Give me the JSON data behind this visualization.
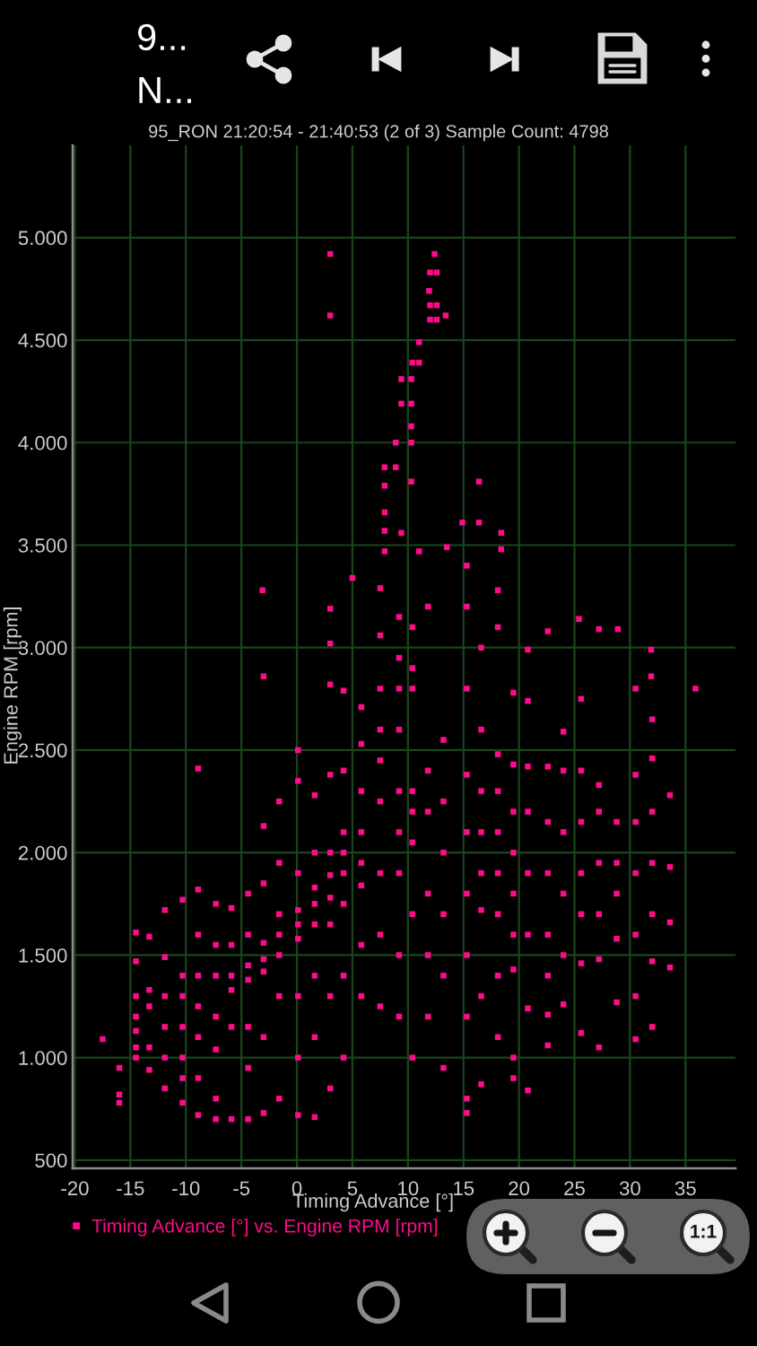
{
  "chart_data": {
    "type": "scatter",
    "title": "95_RON 21:20:54 - 21:40:53 (2 of 3) Sample Count: 4798",
    "xlabel": "Timing Advance [°]",
    "ylabel": "Engine RPM [rpm]",
    "annotations": [
      "9...",
      "N...",
      "1:1"
    ],
    "series": [
      {
        "name": "Timing Advance [°] vs. Engine RPM [rpm]",
        "color": "#ff0a8c",
        "x": [
          -17.5,
          -16,
          -16,
          -16,
          -14.5,
          -14.5,
          -14.5,
          -14.5,
          -14.5,
          -14.5,
          -14.5,
          -13.3,
          -13.3,
          -13.3,
          -13.3,
          -13.3,
          -11.9,
          -11.9,
          -11.9,
          -11.9,
          -11.9,
          -11.9,
          -10.3,
          -10.3,
          -10.3,
          -10.3,
          -10.3,
          -10.3,
          -10.3,
          -8.9,
          -8.9,
          -8.9,
          -8.9,
          -8.9,
          -8.9,
          -8.9,
          -8.9,
          -7.3,
          -7.3,
          -7.3,
          -7.3,
          -7.3,
          -7.3,
          -7.3,
          -5.9,
          -5.9,
          -5.9,
          -5.9,
          -5.9,
          -5.9,
          -4.4,
          -4.4,
          -4.4,
          -4.4,
          -4.4,
          -4.4,
          -4.4,
          -3,
          -3,
          -3,
          -3,
          -3,
          -3,
          -3,
          -3,
          -3.1,
          -1.6,
          -1.6,
          -1.6,
          -1.6,
          -1.6,
          -1.6,
          -1.6,
          0.1,
          0.1,
          0.1,
          0.1,
          0.1,
          0.1,
          0.1,
          0.1,
          0.1,
          1.6,
          1.6,
          1.6,
          1.6,
          1.6,
          1.6,
          1.6,
          1.6,
          3,
          3,
          3,
          3,
          3,
          3,
          3,
          3,
          3,
          3,
          3,
          3,
          4.2,
          4.2,
          4.2,
          4.2,
          4.2,
          4.2,
          4.2,
          4.2,
          5,
          5.8,
          5.8,
          5.8,
          5.8,
          5.8,
          5.8,
          5.8,
          5.8,
          7.5,
          7.5,
          7.5,
          7.5,
          7.5,
          7.5,
          7.5,
          7.5,
          7.5,
          7.9,
          7.9,
          7.9,
          7.9,
          7.9,
          8.9,
          8.9,
          9.2,
          9.2,
          9.2,
          9.2,
          9.2,
          9.2,
          9.2,
          9.2,
          9.2,
          9.4,
          9.4,
          9.4,
          10.3,
          10.3,
          10.3,
          10.3,
          10.3,
          10.4,
          10.4,
          10.4,
          10.4,
          10.4,
          10.4,
          10.4,
          10.4,
          10.4,
          11,
          11,
          11,
          11.8,
          11.8,
          11.8,
          11.8,
          11.8,
          11.8,
          12,
          12,
          12,
          11.9,
          12.4,
          12.6,
          12.6,
          12.6,
          13.2,
          13.2,
          13.2,
          13.2,
          13.2,
          13.2,
          13.4,
          13.5,
          14.9,
          15.3,
          15.3,
          15.3,
          15.3,
          15.3,
          15.3,
          15.3,
          15.3,
          15.3,
          15.3,
          16.4,
          16.4,
          16.6,
          16.6,
          16.6,
          16.6,
          16.6,
          16.6,
          16.6,
          16.6,
          18.1,
          18.1,
          18.1,
          18.1,
          18.1,
          18.1,
          18.1,
          18.1,
          18.1,
          18.4,
          18.4,
          19.5,
          19.5,
          19.5,
          19.5,
          19.5,
          19.5,
          19.5,
          19.5,
          19.5,
          20.8,
          20.8,
          20.8,
          20.8,
          20.8,
          20.8,
          20.8,
          20.8,
          22.6,
          22.6,
          22.6,
          22.6,
          22.6,
          22.6,
          22.6,
          22.6,
          24,
          24,
          24,
          24,
          24,
          24,
          25.4,
          25.6,
          25.6,
          25.6,
          25.6,
          25.6,
          25.6,
          25.6,
          27.2,
          27.2,
          27.2,
          27.2,
          27.2,
          27.2,
          27.2,
          28.8,
          28.8,
          28.8,
          28.8,
          28.8,
          28.9,
          30.5,
          30.5,
          30.5,
          30.5,
          30.5,
          30.5,
          30.5,
          31.9,
          31.9,
          32,
          32,
          32,
          32,
          32,
          32,
          32,
          33.6,
          33.6,
          33.6,
          33.6,
          35.9
        ],
        "values": [
          1090,
          950,
          820,
          780,
          1610,
          1470,
          1300,
          1200,
          1130,
          1050,
          1000,
          1590,
          1330,
          1250,
          1050,
          940,
          1720,
          1490,
          1300,
          1150,
          1000,
          850,
          1770,
          1400,
          1300,
          1150,
          1000,
          900,
          780,
          2410,
          1820,
          1600,
          1400,
          1250,
          1100,
          900,
          720,
          1750,
          1550,
          1400,
          1200,
          1040,
          800,
          700,
          1730,
          1550,
          1400,
          1330,
          1150,
          700,
          1800,
          1600,
          1450,
          1380,
          1150,
          950,
          700,
          2860,
          2130,
          1850,
          1560,
          1480,
          1420,
          1100,
          730,
          3280,
          2250,
          1950,
          1700,
          1600,
          1500,
          1300,
          800,
          2500,
          2350,
          1900,
          1720,
          1650,
          1580,
          1300,
          1000,
          720,
          2280,
          2000,
          1830,
          1750,
          1650,
          1400,
          1100,
          710,
          4920,
          4620,
          3190,
          3020,
          2820,
          2380,
          2000,
          1890,
          1780,
          1650,
          1300,
          850,
          2790,
          2400,
          2100,
          2000,
          1900,
          1750,
          1400,
          1000,
          3340,
          2710,
          2530,
          2300,
          2100,
          1950,
          1840,
          1550,
          1300,
          3290,
          3060,
          2800,
          2600,
          2450,
          2250,
          1900,
          1600,
          1250,
          3880,
          3790,
          3660,
          3570,
          3470,
          4000,
          3880,
          3150,
          2950,
          2800,
          2600,
          2300,
          2100,
          1900,
          1500,
          1200,
          4310,
          4190,
          3560,
          4310,
          4190,
          4080,
          4000,
          3810,
          4390,
          3100,
          2900,
          2800,
          2300,
          2200,
          2050,
          1700,
          1000,
          4490,
          4390,
          3470,
          3200,
          2400,
          2200,
          1800,
          1500,
          1200,
          4830,
          4670,
          4600,
          4740,
          4920,
          4830,
          4670,
          4600,
          2550,
          2250,
          2000,
          1700,
          1400,
          950,
          4620,
          3490,
          3610,
          3400,
          3200,
          2800,
          2380,
          2100,
          1800,
          1500,
          1200,
          800,
          730,
          3810,
          3610,
          3000,
          2600,
          2300,
          2100,
          1900,
          1720,
          1300,
          870,
          3280,
          3100,
          2480,
          2300,
          2100,
          1900,
          1700,
          1400,
          1100,
          3560,
          3480,
          2780,
          2430,
          2200,
          2000,
          1800,
          1600,
          1430,
          1000,
          900,
          2990,
          2740,
          2420,
          2200,
          1900,
          1600,
          1240,
          840,
          3080,
          2420,
          2150,
          1900,
          1600,
          1400,
          1210,
          1060,
          2590,
          2400,
          2100,
          1800,
          1500,
          1260,
          3140,
          2750,
          2400,
          2150,
          1900,
          1700,
          1460,
          1120,
          3090,
          2330,
          2200,
          1950,
          1700,
          1480,
          1050,
          2150,
          1950,
          1800,
          1580,
          1270,
          3090,
          2800,
          2380,
          2150,
          1900,
          1600,
          1300,
          1090,
          2990,
          2860,
          2650,
          2460,
          2200,
          1950,
          1700,
          1470,
          1150,
          2280,
          1930,
          1660,
          1440,
          2800
        ]
      }
    ],
    "xlim": [
      -20.2,
      39.5
    ],
    "ylim": [
      460,
      5450
    ],
    "xticks": [
      -20,
      -15,
      -10,
      -5,
      0,
      5,
      10,
      15,
      20,
      25,
      30,
      35
    ],
    "yticks": [
      500,
      {
        "value": 1000,
        "label": "1.000"
      },
      {
        "value": 1500,
        "label": "1.500"
      },
      {
        "value": 2000,
        "label": "2.000"
      },
      {
        "value": 2500,
        "label": "2.500"
      },
      {
        "value": 3000,
        "label": "3.000"
      },
      {
        "value": 3500,
        "label": "3.500"
      },
      {
        "value": 4000,
        "label": "4.000"
      },
      {
        "value": 4500,
        "label": "4.500"
      },
      {
        "value": 5000,
        "label": "5.000"
      }
    ],
    "grid": true,
    "legend": "bottom left",
    "marker": "square"
  }
}
